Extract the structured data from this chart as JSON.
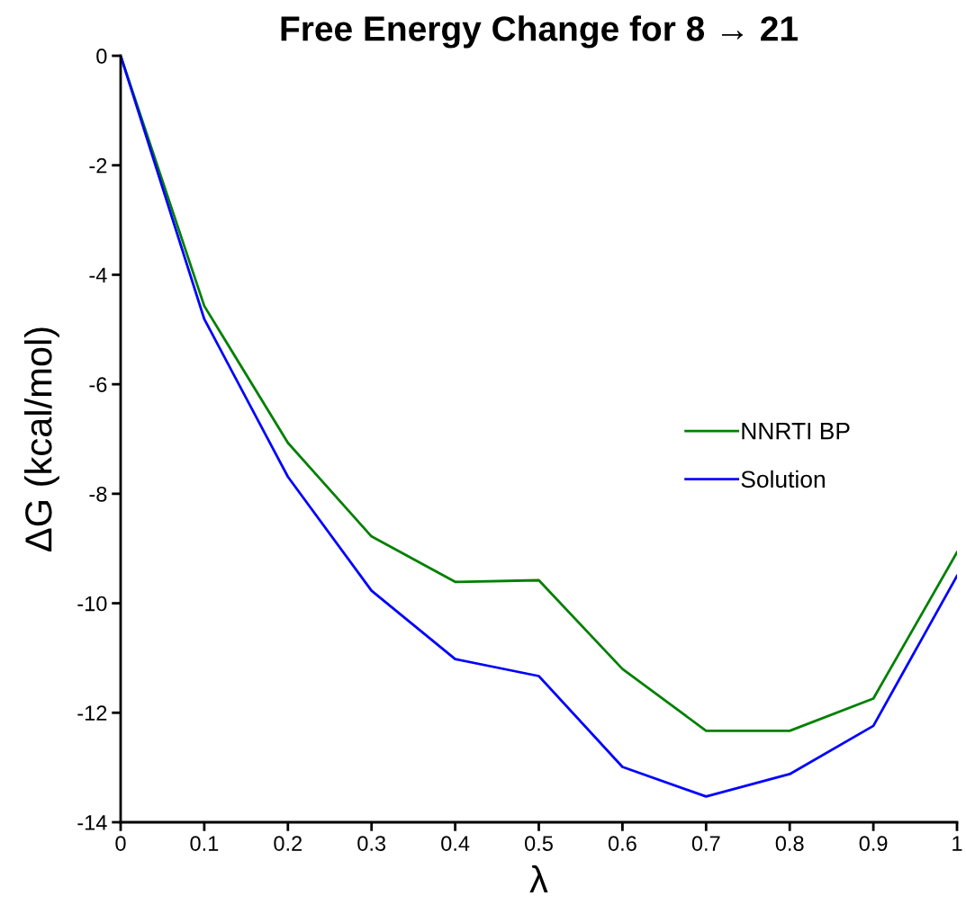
{
  "chart_data": {
    "type": "line",
    "title": "Free Energy Change for 8 → 21",
    "xlabel": "λ",
    "ylabel": "ΔG (kcal/mol)",
    "x": [
      0,
      0.1,
      0.2,
      0.3,
      0.4,
      0.5,
      0.6,
      0.7,
      0.8,
      0.9,
      1
    ],
    "series": [
      {
        "name": "NNRTI BP",
        "color": "#008000",
        "values": [
          0,
          -4.57,
          -7.07,
          -8.78,
          -9.61,
          -9.58,
          -11.2,
          -12.33,
          -12.33,
          -11.74,
          -9.07
        ]
      },
      {
        "name": "Solution",
        "color": "#0000ff",
        "values": [
          0,
          -4.81,
          -7.69,
          -9.77,
          -11.02,
          -11.33,
          -12.99,
          -13.53,
          -13.12,
          -12.24,
          -9.5
        ]
      }
    ],
    "xlim": [
      0,
      1
    ],
    "ylim": [
      -14,
      0
    ],
    "xticks": [
      0,
      0.1,
      0.2,
      0.3,
      0.4,
      0.5,
      0.6,
      0.7,
      0.8,
      0.9,
      1
    ],
    "yticks": [
      -14,
      -12,
      -10,
      -8,
      -6,
      -4,
      -2,
      0
    ],
    "grid": false,
    "legend": "right",
    "marker": "none",
    "line_style": "solid"
  }
}
